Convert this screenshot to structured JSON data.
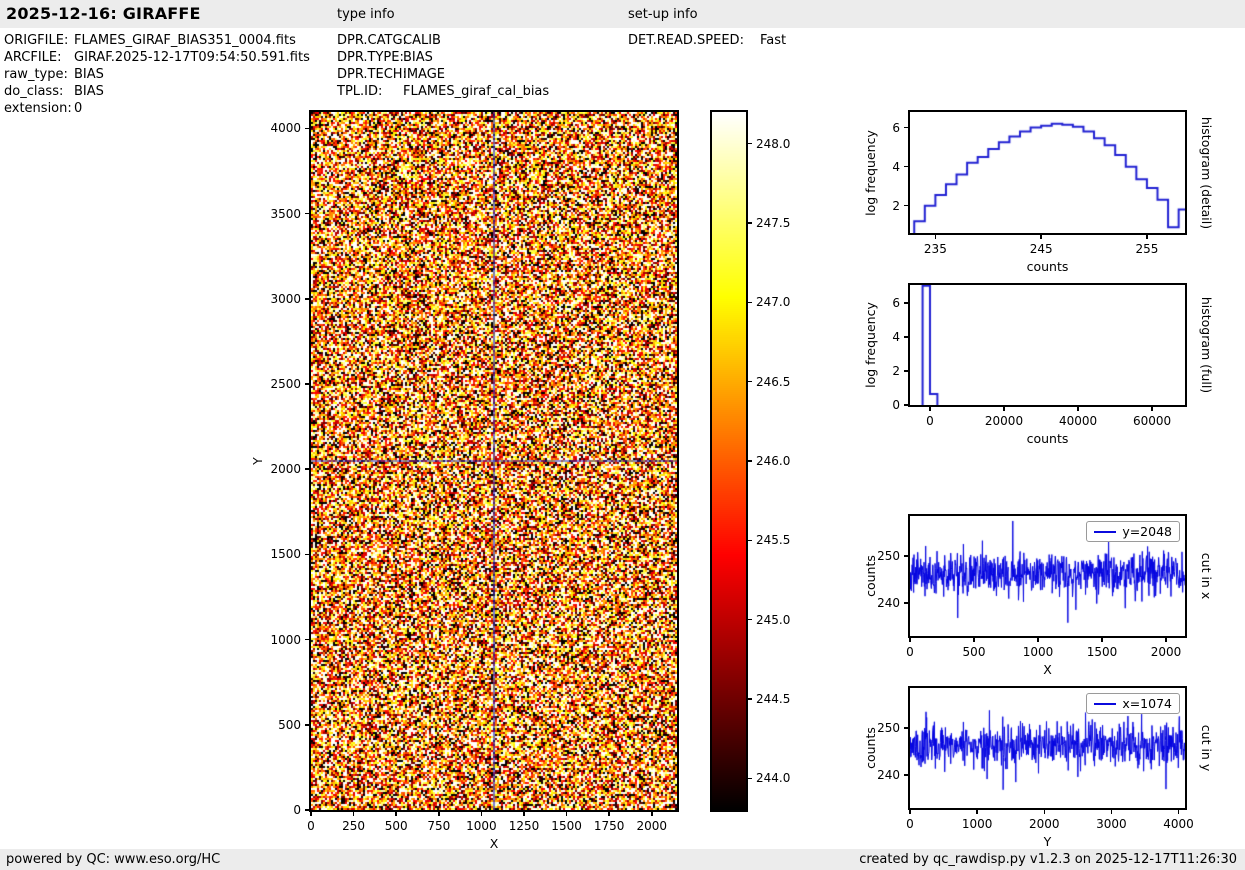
{
  "header": {
    "title": "2025-12-16: GIRAFFE",
    "type_info_label": "type info",
    "setup_info_label": "set-up info"
  },
  "metadata": {
    "file_info": [
      {
        "label": "ORIGFILE:",
        "value": "FLAMES_GIRAF_BIAS351_0004.fits"
      },
      {
        "label": "ARCFILE:",
        "value": "GIRAF.2025-12-17T09:54:50.591.fits"
      },
      {
        "label": "raw_type:",
        "value": "BIAS"
      },
      {
        "label": "do_class:",
        "value": "BIAS"
      },
      {
        "label": "extension:",
        "value": "0"
      }
    ],
    "type_info": [
      {
        "label": "DPR.CATG:",
        "value": "CALIB"
      },
      {
        "label": "DPR.TYPE:",
        "value": "BIAS"
      },
      {
        "label": "DPR.TECH:",
        "value": "IMAGE"
      },
      {
        "label": "TPL.ID:",
        "value": "FLAMES_giraf_cal_bias"
      }
    ],
    "setup_info": [
      {
        "label": "DET.READ.SPEED:",
        "value": "Fast"
      }
    ]
  },
  "footer": {
    "left": "powered by QC: www.eso.org/HC",
    "right": "created by qc_rawdisp.py v1.2.3 on 2025-12-17T11:26:30"
  },
  "colors": {
    "hist_line": "#2020d2",
    "cut_line": "#0404e0",
    "crosshair": "#2323bb",
    "frame": "#000000",
    "bar_bg": "#ececec"
  },
  "chart_data": [
    {
      "id": "main-image",
      "type": "heatmap",
      "xlabel": "X",
      "ylabel": "Y",
      "xlim": [
        0,
        2148
      ],
      "ylim": [
        0,
        4096
      ],
      "xticks": [
        0,
        250,
        500,
        750,
        1000,
        1250,
        1500,
        1750,
        2000
      ],
      "yticks": [
        0,
        500,
        1000,
        1500,
        2000,
        2500,
        3000,
        3500,
        4000
      ],
      "crosshair": {
        "x": 1074,
        "y": 2048
      },
      "noise": {
        "mean": 246.4,
        "sigma": 2.0,
        "seed": 42
      },
      "colormap": "hot",
      "vmin": 243.8,
      "vmax": 248.2
    },
    {
      "id": "colorbar",
      "type": "colorbar",
      "lim": [
        243.8,
        248.2
      ],
      "ticks": [
        244.0,
        244.5,
        245.0,
        245.5,
        246.0,
        246.5,
        247.0,
        247.5,
        248.0
      ],
      "tick_format": 1,
      "colormap": "hot"
    },
    {
      "id": "hist-detail",
      "type": "step-histogram",
      "title_right": "histogram (detail)",
      "xlabel": "counts",
      "ylabel": "log frequency",
      "bin_start": 233,
      "bin_width": 1,
      "values": [
        1.2,
        2.0,
        2.55,
        3.1,
        3.6,
        4.2,
        4.5,
        4.9,
        5.25,
        5.55,
        5.8,
        6.0,
        6.1,
        6.2,
        6.15,
        6.05,
        5.8,
        5.45,
        5.1,
        4.6,
        4.0,
        3.35,
        2.9,
        2.3,
        0.9,
        1.8
      ],
      "xlim": [
        232.6,
        258.6
      ],
      "ylim": [
        0.6,
        6.8
      ],
      "xticks": [
        235,
        245,
        255
      ],
      "yticks": [
        2,
        4,
        6
      ]
    },
    {
      "id": "hist-full",
      "type": "step-histogram",
      "title_right": "histogram (full)",
      "xlabel": "counts",
      "ylabel": "log frequency",
      "bin_start": -2000,
      "bin_width": 2000,
      "values": [
        7.0,
        0.65
      ],
      "xlim": [
        -5400,
        68900
      ],
      "ylim": [
        0,
        7.05
      ],
      "xticks": [
        0,
        20000,
        40000,
        60000
      ],
      "yticks": [
        0,
        2,
        4,
        6
      ]
    },
    {
      "id": "cut-x",
      "type": "noise-line",
      "legend": "y=2048",
      "title_right": "cut in x",
      "xlabel": "X",
      "ylabel": "counts",
      "xlim": [
        0,
        2148
      ],
      "ylim": [
        233,
        258.5
      ],
      "xticks": [
        0,
        500,
        1000,
        1500,
        2000
      ],
      "yticks": [
        240,
        250
      ],
      "noise": {
        "mean": 246.3,
        "sigma": 2.2,
        "seed": 7
      }
    },
    {
      "id": "cut-y",
      "type": "noise-line",
      "legend": "x=1074",
      "title_right": "cut in y",
      "xlabel": "Y",
      "ylabel": "counts",
      "xlim": [
        0,
        4096
      ],
      "ylim": [
        233,
        258.5
      ],
      "xticks": [
        0,
        1000,
        2000,
        3000,
        4000
      ],
      "yticks": [
        240,
        250
      ],
      "noise": {
        "mean": 246.3,
        "sigma": 2.2,
        "seed": 11
      }
    }
  ]
}
